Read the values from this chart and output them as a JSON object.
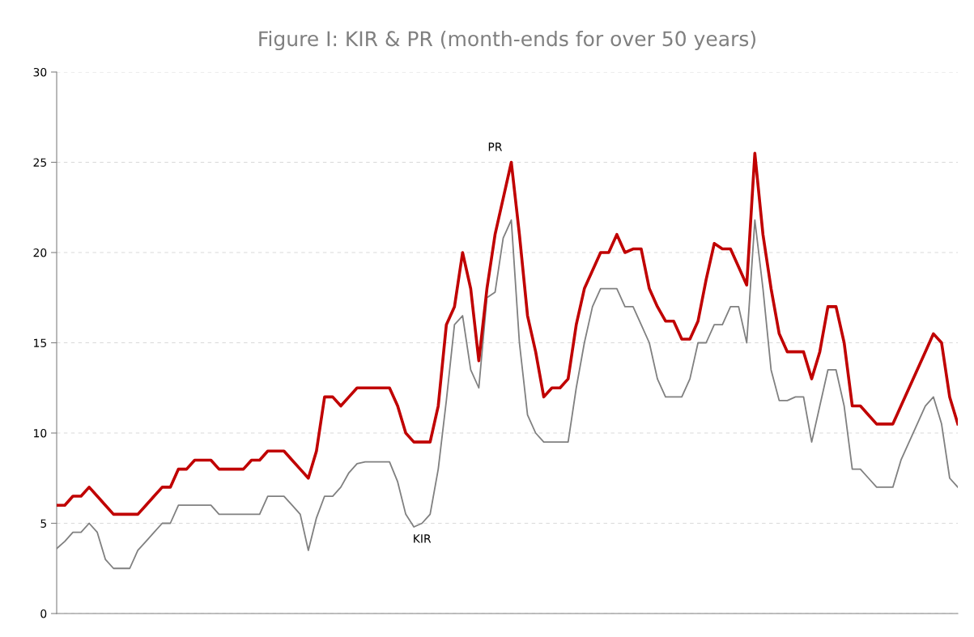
{
  "chart_data": {
    "type": "line",
    "title": "Figure I: KIR & PR (month-ends for over 50 years)",
    "categories": [
      null,
      null,
      null,
      null,
      null,
      null,
      null,
      null,
      null,
      null,
      null,
      null,
      null,
      null,
      null,
      null,
      null,
      null,
      null,
      null,
      null,
      null,
      null,
      null,
      null,
      null,
      null,
      null,
      null,
      null,
      null,
      null,
      null,
      null,
      null,
      null,
      null,
      null,
      null,
      null,
      null,
      null,
      null,
      null,
      null,
      null,
      null,
      null,
      null,
      null,
      null,
      null,
      null,
      null,
      null,
      null,
      null,
      null,
      null,
      null,
      null,
      null,
      null,
      null,
      null,
      null,
      null,
      null,
      null,
      null,
      null,
      null,
      null,
      null,
      null,
      null,
      null,
      null,
      null,
      null,
      null,
      null,
      null,
      null,
      null,
      null,
      null,
      null,
      null,
      null,
      null,
      null,
      null,
      null,
      null,
      null,
      null,
      null,
      null,
      null,
      null,
      null,
      null,
      null,
      null,
      null,
      null,
      null,
      null,
      null,
      null,
      null
    ],
    "series": [
      {
        "name": "KIR",
        "color": "#808080",
        "values": [
          3.6,
          4,
          4.5,
          4.5,
          5,
          4.5,
          3,
          2.5,
          2.5,
          2.5,
          3.5,
          4,
          4.5,
          5,
          5,
          6,
          6,
          6,
          6,
          6,
          5.5,
          5.5,
          5.5,
          5.5,
          5.5,
          5.5,
          6.5,
          6.5,
          6.5,
          6,
          5.5,
          3.5,
          5.3,
          6.5,
          6.5,
          7,
          7.8,
          8.3,
          8.4,
          8.4,
          8.4,
          8.4,
          7.3,
          5.5,
          4.8,
          5,
          5.5,
          8,
          11.8,
          16,
          16.5,
          13.5,
          12.5,
          17.5,
          17.8,
          20.8,
          21.8,
          15,
          11,
          10,
          9.5,
          9.5,
          9.5,
          9.5,
          12.5,
          15,
          17,
          18,
          18,
          18,
          17,
          17,
          16,
          15,
          13,
          12,
          12,
          12,
          13,
          15,
          15,
          16,
          16,
          17,
          17,
          15,
          21.8,
          18,
          13.5,
          11.8,
          11.8,
          12,
          12,
          9.5,
          11.5,
          13.5,
          13.5,
          11.5,
          8,
          8,
          7.5,
          7,
          7,
          7,
          8.5,
          9.5,
          10.5,
          11.5,
          12,
          10.5,
          7.5,
          7
        ]
      },
      {
        "name": "PR",
        "color": "#c00000",
        "values": [
          6,
          6,
          6.5,
          6.5,
          7,
          6.5,
          6,
          5.5,
          5.5,
          5.5,
          5.5,
          6,
          6.5,
          7,
          7,
          8,
          8,
          8.5,
          8.5,
          8.5,
          8,
          8,
          8,
          8,
          8.5,
          8.5,
          9,
          9,
          9,
          8.5,
          8,
          7.5,
          9,
          12,
          12,
          11.5,
          12,
          12.5,
          12.5,
          12.5,
          12.5,
          12.5,
          11.5,
          10,
          9.5,
          9.5,
          9.5,
          11.5,
          16,
          17,
          20,
          18,
          14,
          18,
          21,
          23,
          25,
          21,
          16.5,
          14.5,
          12,
          12.5,
          12.5,
          13,
          16,
          18,
          19,
          20,
          20,
          21,
          20,
          20.2,
          20.2,
          18,
          17,
          16.2,
          16.2,
          15.2,
          15.2,
          16.2,
          18.5,
          20.5,
          20.2,
          20.2,
          19.2,
          18.2,
          25.5,
          21,
          18,
          15.5,
          14.5,
          14.5,
          14.5,
          13,
          14.5,
          17,
          17,
          15,
          11.5,
          11.5,
          11,
          10.5,
          10.5,
          10.5,
          11.5,
          12.5,
          13.5,
          14.5,
          15.5,
          15,
          12,
          10.5
        ]
      }
    ],
    "ylim": [
      0,
      30
    ],
    "yticks": [
      0,
      5,
      10,
      15,
      20,
      25,
      30
    ],
    "grid": "y",
    "legend": false,
    "marker": "none",
    "line_style": "solid"
  }
}
